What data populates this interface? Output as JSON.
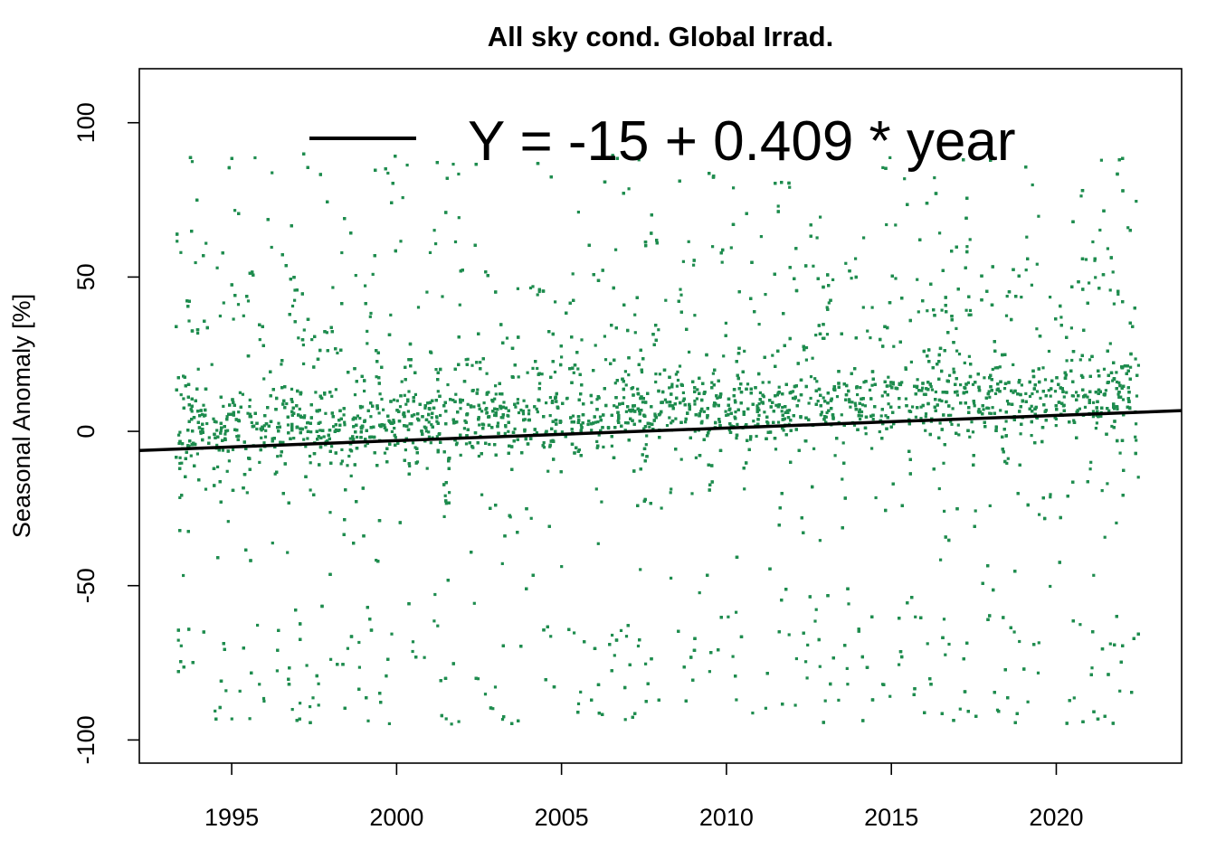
{
  "chart_data": {
    "type": "scatter",
    "title": "All sky cond. Global Irrad.",
    "xlabel": "",
    "ylabel": "Seasonal Anomaly [%]",
    "xlim": [
      1992.2,
      2023.8
    ],
    "ylim": [
      -107.5,
      117.5
    ],
    "x_ticks": [
      1995,
      2000,
      2005,
      2010,
      2015,
      2020
    ],
    "x_tick_labels": [
      "1995",
      "2000",
      "2005",
      "2010",
      "2015",
      "2020"
    ],
    "y_ticks": [
      -100,
      -50,
      0,
      50,
      100
    ],
    "y_tick_labels": [
      "-100",
      "-50",
      "0",
      "50",
      "100"
    ],
    "grid": false,
    "legend_position": "top",
    "legend": [
      {
        "label": "Y = -15 + 0.409 * year",
        "color": "#000000"
      }
    ],
    "trend": {
      "intercept": -15,
      "slope": 0.409,
      "color": "#000000"
    },
    "series": [
      {
        "marker_color": "#1e8c4e",
        "x_range": [
          1993.3,
          2022.5
        ],
        "y_range": [
          -99,
          109
        ],
        "description_points_per_year": 300,
        "seasonal_spread": true
      }
    ]
  }
}
